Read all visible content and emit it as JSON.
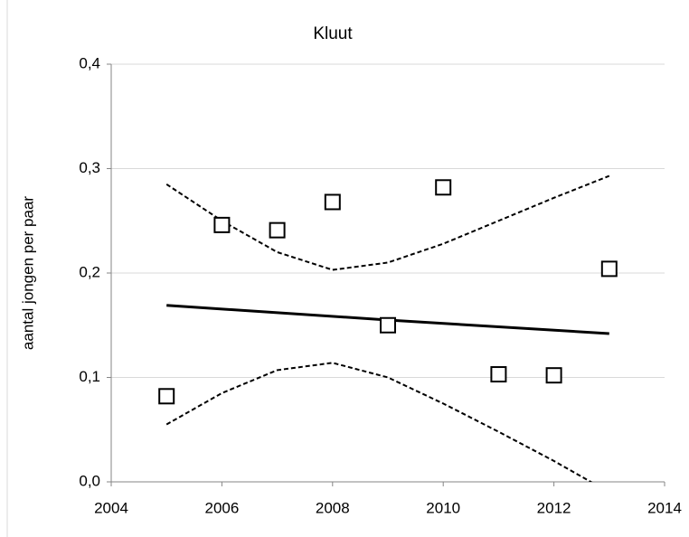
{
  "chart_data": {
    "type": "scatter",
    "title": "Kluut",
    "ylabel": "aantal jongen per paar",
    "xlim": [
      2004,
      2014
    ],
    "xticks": [
      2004,
      2006,
      2008,
      2010,
      2012,
      2014
    ],
    "ylim": [
      0,
      0.4
    ],
    "yticks": [
      {
        "value": 0,
        "label": "0,0"
      },
      {
        "value": 0.1,
        "label": "0,1"
      },
      {
        "value": 0.2,
        "label": "0,2"
      },
      {
        "value": 0.3,
        "label": "0,3"
      },
      {
        "value": 0.4,
        "label": "0,4"
      }
    ],
    "grid": true,
    "series": [
      {
        "mark": "square",
        "color": "#000000",
        "x": [
          2005,
          2006,
          2007,
          2008,
          2009,
          2010,
          2011,
          2012,
          2013
        ],
        "values": [
          0.082,
          0.246,
          0.241,
          0.268,
          0.15,
          0.282,
          0.103,
          0.102,
          0.204
        ]
      },
      {
        "mark": "solid",
        "color": "#000000",
        "x": [
          2005,
          2009,
          2013
        ],
        "values": [
          0.169,
          0.155,
          0.142
        ]
      },
      {
        "mark": "dashed",
        "color": "#000000",
        "x": [
          2005,
          2006,
          2007,
          2008,
          2009,
          2010,
          2011,
          2012,
          2013
        ],
        "values": [
          0.285,
          0.25,
          0.22,
          0.203,
          0.21,
          0.228,
          0.25,
          0.272,
          0.293
        ]
      },
      {
        "mark": "dashed",
        "color": "#000000",
        "x": [
          2005,
          2006,
          2007,
          2008,
          2009,
          2010,
          2011,
          2012,
          2013
        ],
        "values": [
          0.055,
          0.085,
          0.107,
          0.114,
          0.1,
          0.075,
          0.048,
          0.02,
          -0.01
        ]
      }
    ]
  }
}
